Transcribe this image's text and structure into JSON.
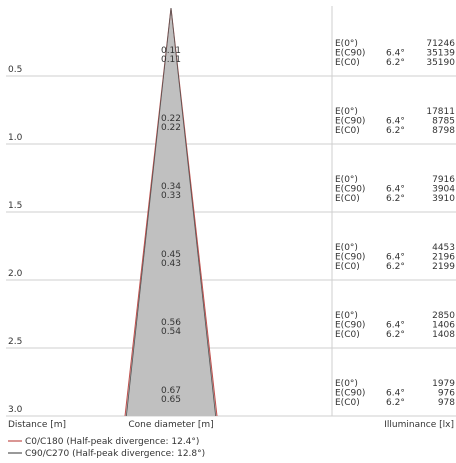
{
  "chart_data": {
    "type": "cone",
    "axis": {
      "distance_label": "Distance [m]",
      "diameter_label": "Cone diameter [m]",
      "illuminance_label": "Illuminance [lx]"
    },
    "rows": [
      {
        "distance": "0.5",
        "d1": "0.11",
        "d2": "0.11",
        "e0": "71246",
        "ec90": "35139",
        "ec0": "35190"
      },
      {
        "distance": "1.0",
        "d1": "0.22",
        "d2": "0.22",
        "e0": "17811",
        "ec90": "8785",
        "ec0": "8798"
      },
      {
        "distance": "1.5",
        "d1": "0.34",
        "d2": "0.33",
        "e0": "7916",
        "ec90": "3904",
        "ec0": "3910"
      },
      {
        "distance": "2.0",
        "d1": "0.45",
        "d2": "0.43",
        "e0": "4453",
        "ec90": "2196",
        "ec0": "2199"
      },
      {
        "distance": "2.5",
        "d1": "0.56",
        "d2": "0.54",
        "e0": "2850",
        "ec90": "1406",
        "ec0": "1408"
      },
      {
        "distance": "3.0",
        "d1": "0.67",
        "d2": "0.65",
        "e0": "1979",
        "ec90": "976",
        "ec0": "978"
      }
    ],
    "labels": {
      "e0": "E(0°)",
      "ec90": "E(C90)",
      "ec0": "E(C0)"
    },
    "angles": {
      "c90": "6.4°",
      "c0": "6.2°"
    },
    "legend": [
      {
        "label": "C0/C180 (Half-peak divergence: 12.4°)",
        "color": "#c0504d"
      },
      {
        "label": "C90/C270 (Half-peak divergence: 12.8°)",
        "color": "#555555"
      }
    ],
    "colors": {
      "cone_fill": "#c0c0c0",
      "grid": "#cfcfcf"
    }
  }
}
